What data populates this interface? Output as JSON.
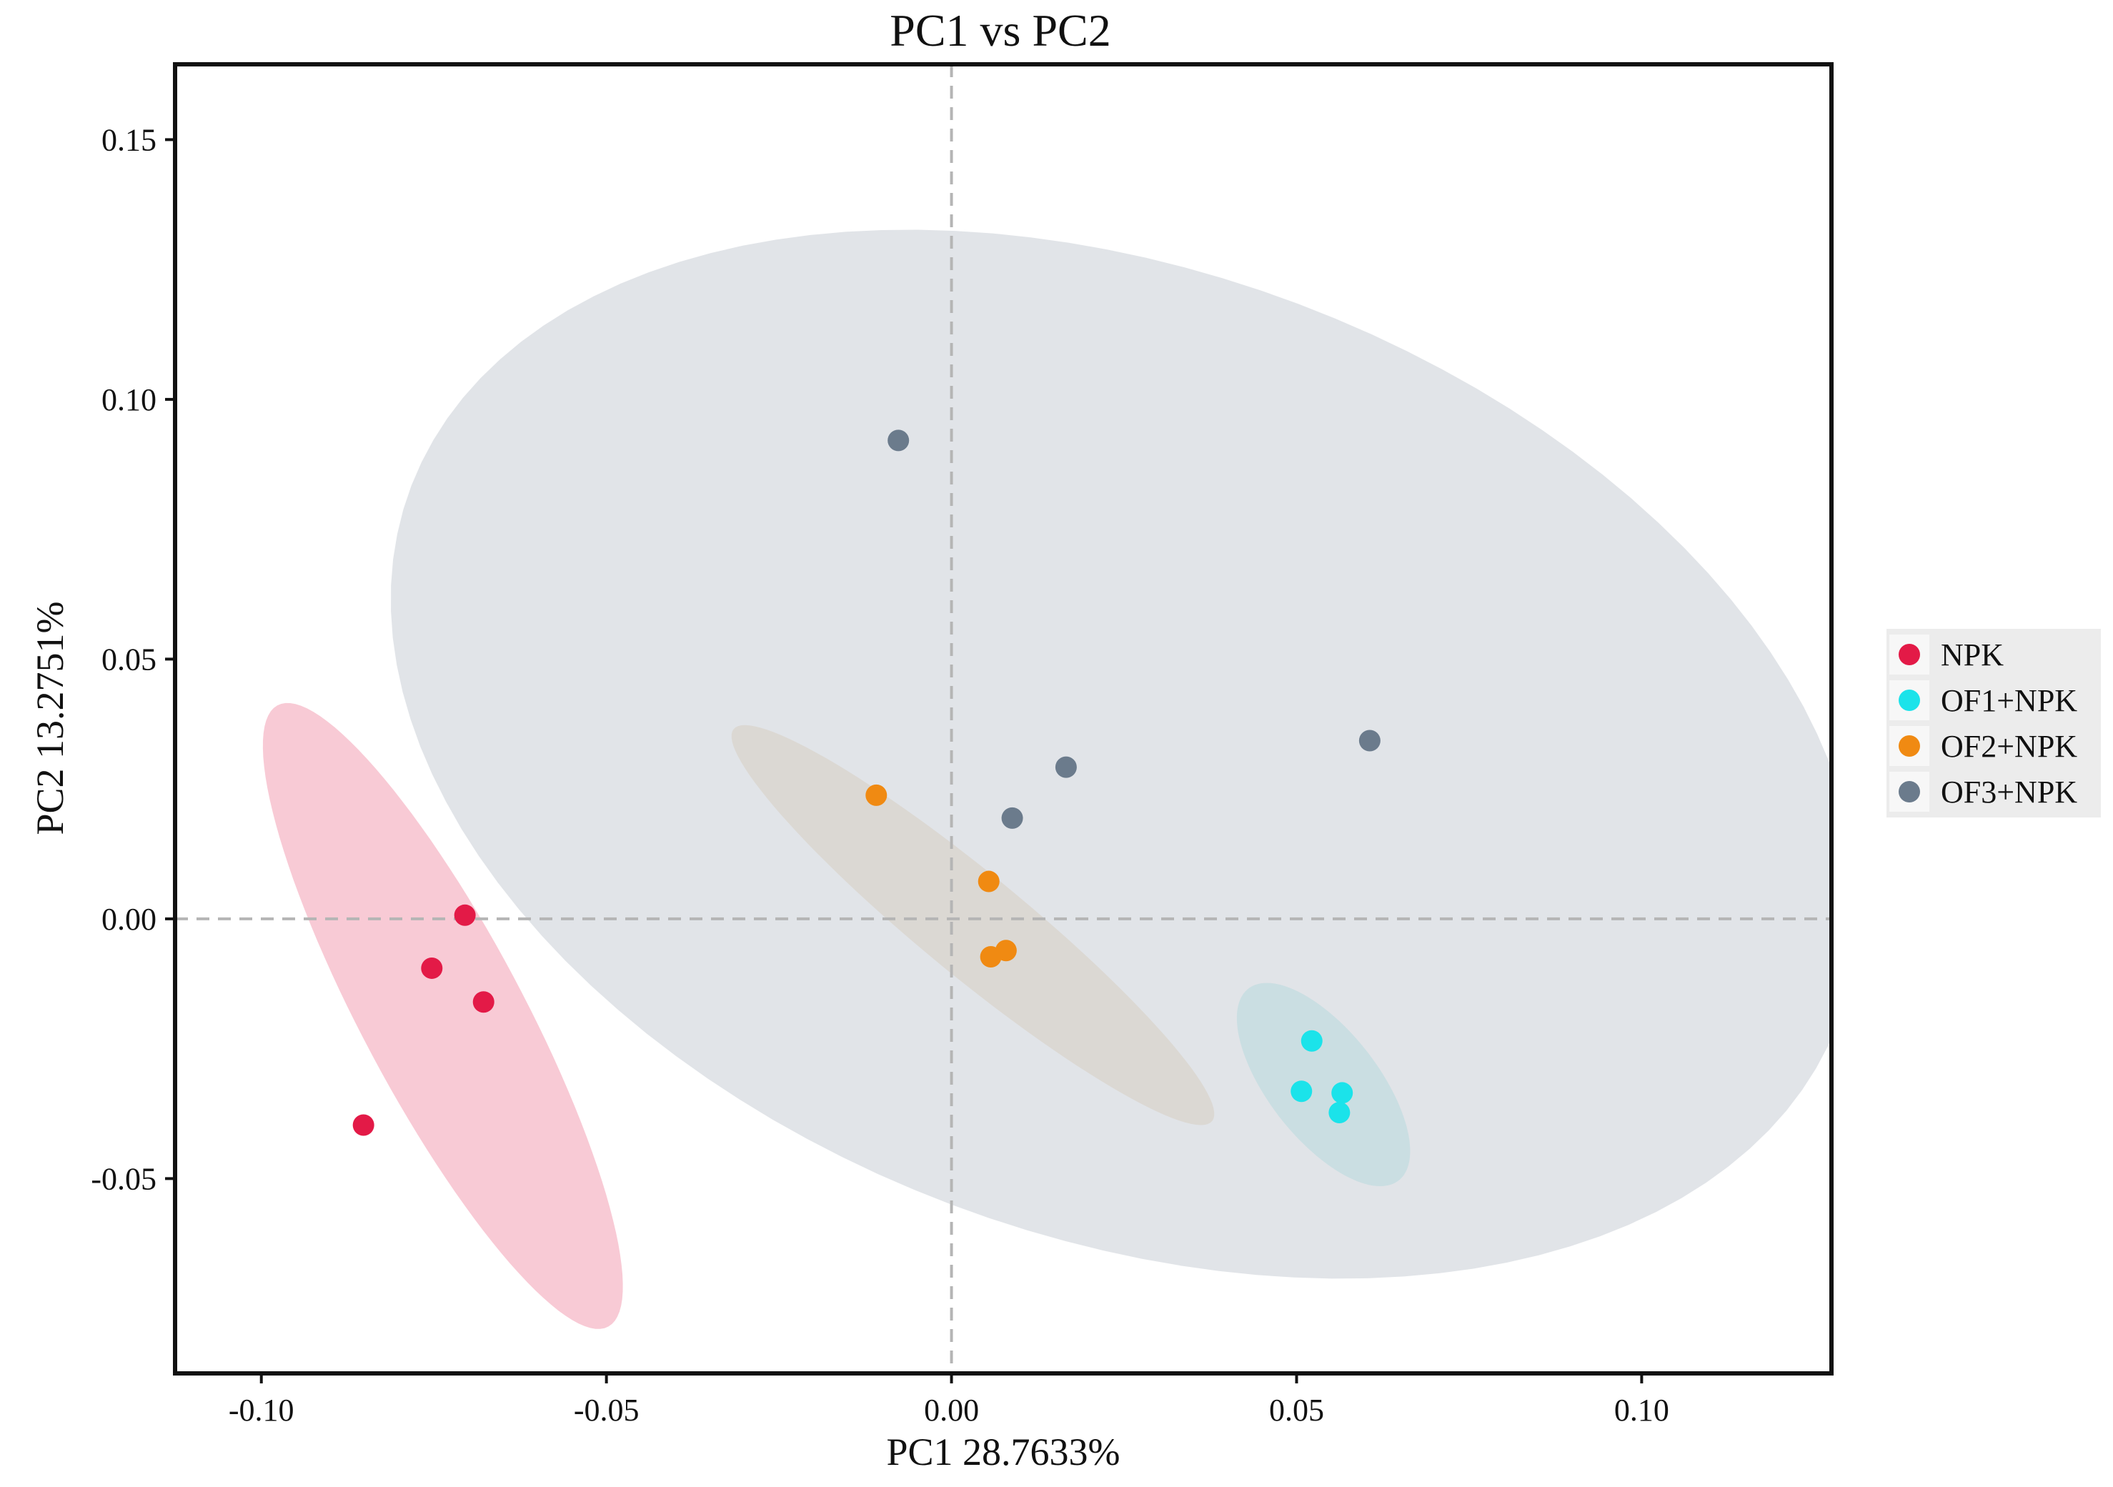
{
  "chart_data": {
    "type": "scatter",
    "title": "PC1 vs PC2",
    "xlabel": "PC1 28.7633%",
    "ylabel": "PC2 13.2751%",
    "xlim": [
      -0.1125,
      0.1275
    ],
    "ylim": [
      -0.0875,
      0.1645
    ],
    "xticks": [
      -0.1,
      -0.05,
      0.0,
      0.05,
      0.1
    ],
    "xtick_labels": [
      "-0.10",
      "-0.05",
      "0.00",
      "0.05",
      "0.10"
    ],
    "yticks": [
      -0.05,
      0.0,
      0.05,
      0.1,
      0.15
    ],
    "ytick_labels": [
      "-0.05",
      "0.00",
      "0.05",
      "0.10",
      "0.15"
    ],
    "grid": false,
    "reference_lines": {
      "x": 0.0,
      "y": 0.0,
      "style": "dashed"
    },
    "legend_position": "right",
    "series": [
      {
        "name": "NPK",
        "color": "#e31a47",
        "ellipse_color": "#f4a7b9",
        "points": [
          [
            -0.0705,
            0.0007
          ],
          [
            -0.0753,
            -0.0095
          ],
          [
            -0.0678,
            -0.016
          ],
          [
            -0.0852,
            -0.0397
          ]
        ],
        "ellipse": {
          "cx": -0.0737,
          "cy": -0.0187,
          "rx": 0.0123,
          "ry": 0.0645,
          "angle_deg": 21.3
        }
      },
      {
        "name": "OF1+NPK",
        "color": "#1be3ea",
        "ellipse_color": "#9fe4e6",
        "points": [
          [
            0.0522,
            -0.0235
          ],
          [
            0.0507,
            -0.0332
          ],
          [
            0.0566,
            -0.0335
          ],
          [
            0.0562,
            -0.0373
          ]
        ],
        "ellipse": {
          "cx": 0.0539,
          "cy": -0.0319,
          "rx": 0.0086,
          "ry": 0.0216,
          "angle_deg": 27.5
        }
      },
      {
        "name": "OF2+NPK",
        "color": "#f08a12",
        "ellipse_color": "#e8cba7",
        "points": [
          [
            -0.0109,
            0.0238
          ],
          [
            0.0054,
            0.0072
          ],
          [
            0.0079,
            -0.0061
          ],
          [
            0.0057,
            -0.0073
          ]
        ],
        "ellipse": {
          "cx": 0.0031,
          "cy": -0.0012,
          "rx": 0.0086,
          "ry": 0.0513,
          "angle_deg": 42.1
        }
      },
      {
        "name": "OF3+NPK",
        "color": "#6b7b8c",
        "ellipse_color": "#cdd2d8",
        "points": [
          [
            -0.0077,
            0.0921
          ],
          [
            0.0088,
            0.0194
          ],
          [
            0.0166,
            0.0292
          ],
          [
            0.0606,
            0.0343
          ]
        ],
        "ellipse": {
          "cx": 0.0251,
          "cy": 0.0317,
          "rx": 0.0868,
          "ry": 0.1182,
          "angle_deg": 50
        }
      }
    ]
  }
}
